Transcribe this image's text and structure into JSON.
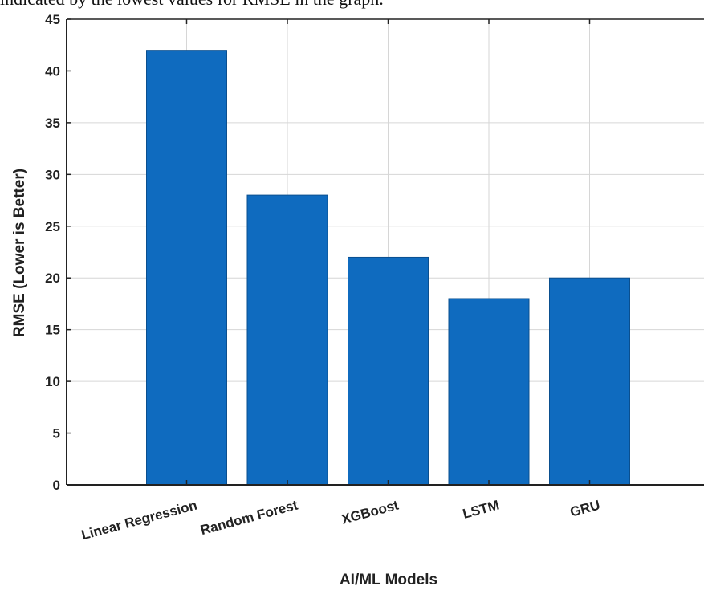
{
  "caption": "indicated by the lowest values for RMSE in the graph.",
  "chart_data": {
    "type": "bar",
    "categories": [
      "Linear Regression",
      "Random Forest",
      "XGBoost",
      "LSTM",
      "GRU"
    ],
    "values": [
      42,
      28,
      22,
      18,
      20
    ],
    "title": "",
    "xlabel": "AI/ML Models",
    "ylabel": "RMSE (Lower is Better)",
    "ylim": [
      0,
      45
    ],
    "yticks": [
      0,
      5,
      10,
      15,
      20,
      25,
      30,
      35,
      40,
      45
    ],
    "grid": true,
    "bar_color": "#0f6bbf"
  }
}
